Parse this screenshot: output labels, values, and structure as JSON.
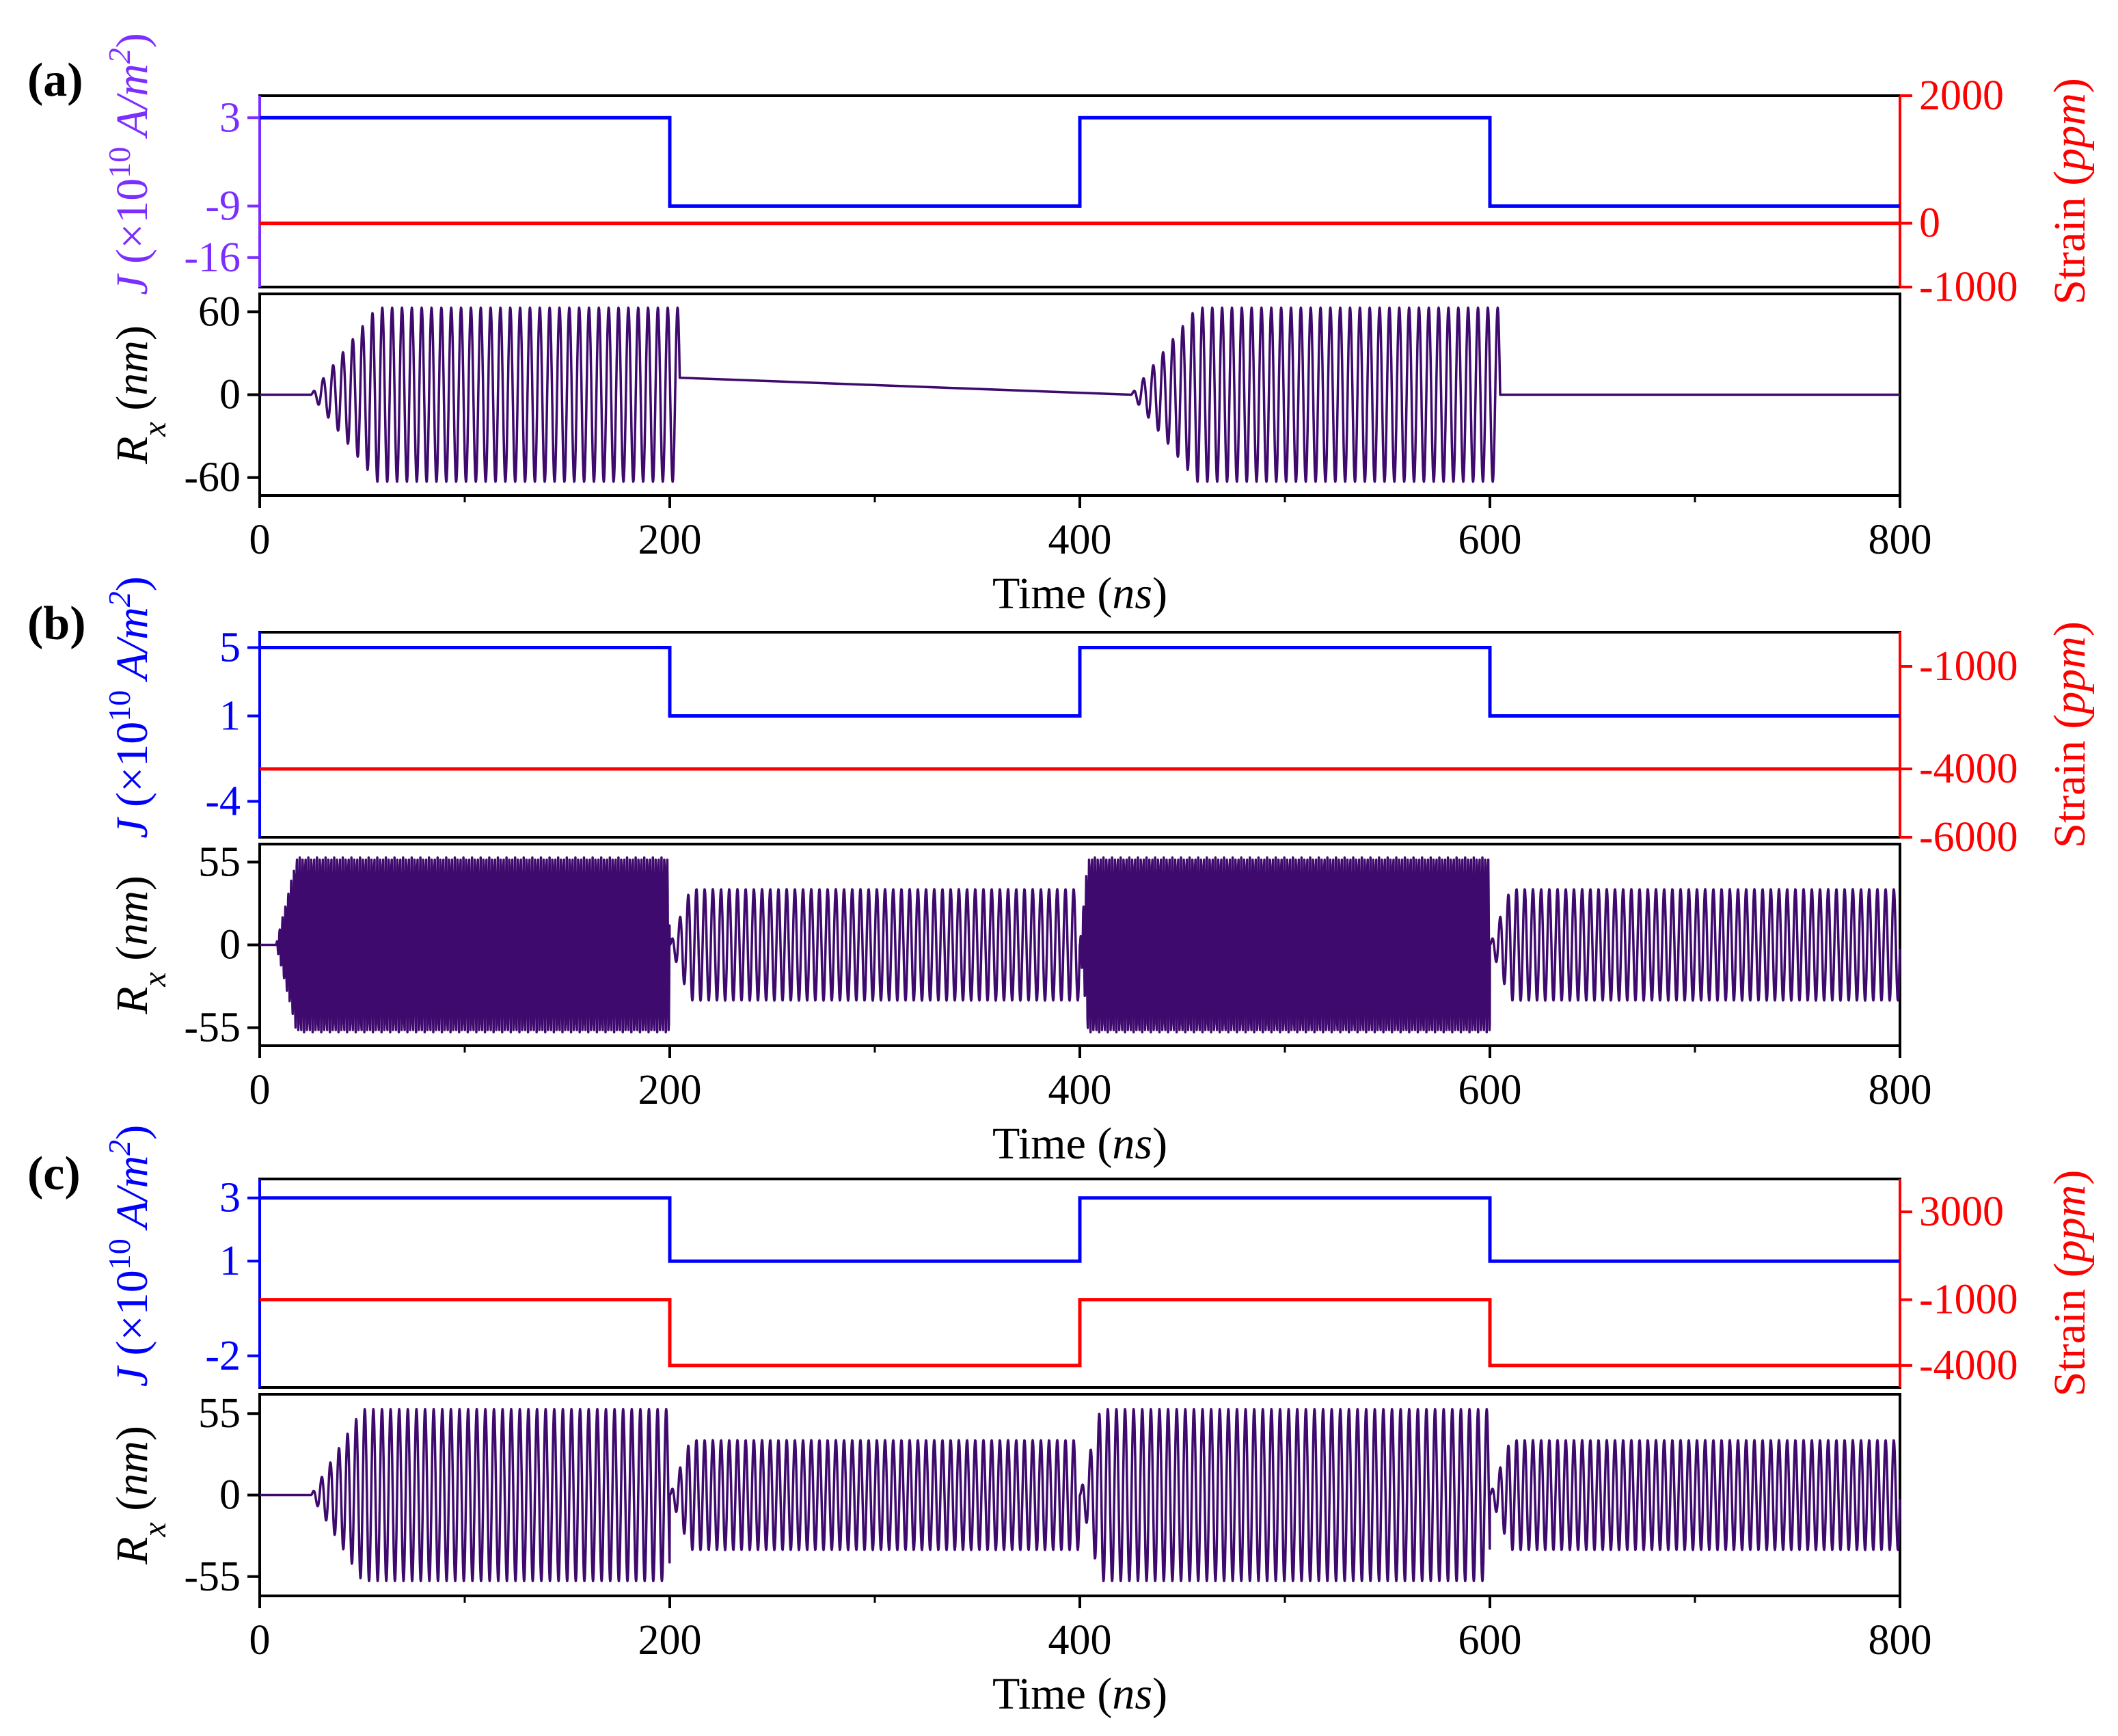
{
  "figure": {
    "x_label": "Time (ns)",
    "x_label_main": "Time (",
    "x_label_unit": "ns",
    "x_label_close": ")",
    "x_ticks": [
      0,
      200,
      400,
      600,
      800
    ],
    "x_range": [
      0,
      800
    ],
    "colors": {
      "current": "#0000ff",
      "current_axis_a": "#7b2fff",
      "strain": "#ff0000",
      "rx": "#3f0a6e",
      "axis": "#000000"
    }
  },
  "chart_data": [
    {
      "panel": "(a)",
      "type": "line",
      "top": {
        "left_axis": {
          "label": "J (×10^10 A/m^2)",
          "ticks": [
            3,
            -9,
            -16
          ],
          "tick_labels": [
            "3",
            "-9",
            "-16"
          ],
          "range": [
            -20,
            6
          ]
        },
        "right_axis": {
          "label": "Strain (ppm)",
          "ticks": [
            2000,
            0,
            -1000
          ],
          "tick_labels": [
            "2000",
            "0",
            "-1000"
          ],
          "range": [
            -1000,
            2000
          ]
        },
        "series": [
          {
            "x": [
              0,
              200,
              200,
              400,
              400,
              600,
              600,
              800
            ],
            "y": [
              3,
              3,
              -9,
              -9,
              3,
              3,
              -9,
              -9
            ]
          },
          {
            "x": [
              0,
              800
            ],
            "y": [
              0,
              0
            ]
          }
        ]
      },
      "bottom": {
        "label": "Rx (nm)",
        "ticks": [
          60,
          0,
          -60
        ],
        "tick_labels": [
          "60",
          "0",
          "-60"
        ],
        "range": [
          -73,
          73
        ],
        "oscillation_segments": [
          {
            "start": 25,
            "end": 205,
            "amplitude": 63,
            "period": 4.8,
            "rise": 32
          },
          {
            "start": 425,
            "end": 605,
            "amplitude": 63,
            "period": 4.8,
            "rise": 32
          }
        ]
      }
    },
    {
      "panel": "(b)",
      "type": "line",
      "top": {
        "left_axis": {
          "label": "J (×10^10 A/m^2)",
          "ticks": [
            5,
            1,
            -4
          ],
          "tick_labels": [
            "5",
            "1",
            "-4"
          ],
          "range": [
            -6.1,
            5.9
          ]
        },
        "right_axis": {
          "label": "Strain (ppm)",
          "ticks": [
            -1000,
            -4000,
            -6000
          ],
          "tick_labels": [
            "-1000",
            "-4000",
            "-6000"
          ],
          "range": [
            -6000,
            0
          ]
        },
        "series": [
          {
            "x": [
              0,
              200,
              200,
              400,
              400,
              600,
              600,
              800
            ],
            "y": [
              5,
              5,
              1,
              1,
              5,
              5,
              1,
              1
            ]
          },
          {
            "x": [
              0,
              800
            ],
            "y": [
              -4000,
              -4000
            ]
          }
        ]
      },
      "bottom": {
        "label": "Rx (nm)",
        "ticks": [
          55,
          0,
          -55
        ],
        "tick_labels": [
          "55",
          "0",
          "-55"
        ],
        "range": [
          -67,
          67
        ],
        "oscillation_segments": [
          {
            "start": 8,
            "end": 200,
            "amplitude": 58,
            "period": 1.4,
            "rise": 10
          },
          {
            "start": 200,
            "end": 400,
            "amplitude": 37,
            "period": 4.0,
            "rise": 10
          },
          {
            "start": 400,
            "end": 600,
            "amplitude": 58,
            "period": 1.4,
            "rise": 4
          },
          {
            "start": 600,
            "end": 800,
            "amplitude": 37,
            "period": 4.0,
            "rise": 10
          }
        ]
      }
    },
    {
      "panel": "(c)",
      "type": "line",
      "top": {
        "left_axis": {
          "label": "J (×10^10 A/m^2)",
          "ticks": [
            3,
            1,
            -2
          ],
          "tick_labels": [
            "3",
            "1",
            "-2"
          ],
          "range": [
            -3.0,
            3.6
          ]
        },
        "right_axis": {
          "label": "Strain (ppm)",
          "ticks": [
            3000,
            -1000,
            -4000
          ],
          "tick_labels": [
            "3000",
            "-1000",
            "-4000"
          ],
          "range": [
            -5000,
            4500
          ]
        },
        "series": [
          {
            "x": [
              0,
              200,
              200,
              400,
              400,
              600,
              600,
              800
            ],
            "y": [
              3,
              3,
              1,
              1,
              3,
              3,
              1,
              1
            ]
          },
          {
            "x": [
              0,
              200,
              200,
              400,
              400,
              600,
              600,
              800
            ],
            "y": [
              -1000,
              -1000,
              -4000,
              -4000,
              -1000,
              -1000,
              -4000,
              -4000
            ]
          }
        ]
      },
      "bottom": {
        "label": "Rx (nm)",
        "ticks": [
          55,
          0,
          -55
        ],
        "tick_labels": [
          "55",
          "0",
          "-55"
        ],
        "range": [
          -68,
          68
        ],
        "oscillation_segments": [
          {
            "start": 25,
            "end": 200,
            "amplitude": 58,
            "period": 4.2,
            "rise": 25
          },
          {
            "start": 200,
            "end": 400,
            "amplitude": 37,
            "period": 4.0,
            "rise": 10
          },
          {
            "start": 400,
            "end": 600,
            "amplitude": 58,
            "period": 4.2,
            "rise": 10
          },
          {
            "start": 600,
            "end": 800,
            "amplitude": 37,
            "period": 4.0,
            "rise": 10
          }
        ]
      }
    }
  ]
}
